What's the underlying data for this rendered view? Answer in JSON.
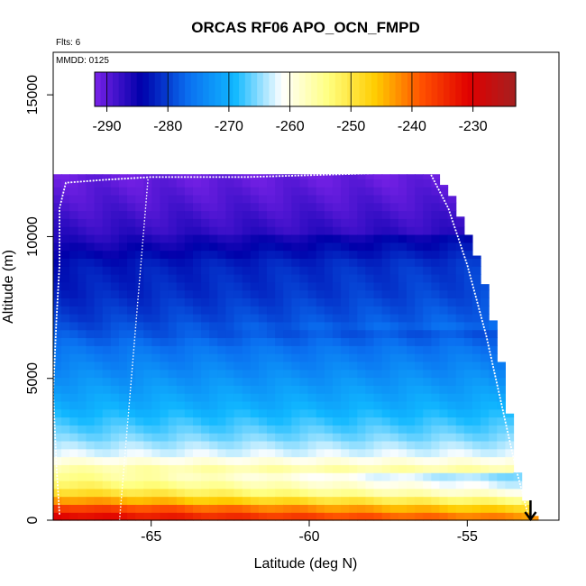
{
  "chart_data": {
    "type": "heatmap",
    "title": "ORCAS RF06 APO_OCN_FMPD",
    "annotations": [
      "Flts: 6",
      "MMDD: 0125"
    ],
    "xlabel": "Latitude (deg N)",
    "ylabel": "Altitude (m)",
    "xlim": [
      -68.1,
      -52.1
    ],
    "ylim": [
      0,
      16500
    ],
    "x_ticks": [
      -65,
      -60,
      -55
    ],
    "x_tick_labels": [
      "-65",
      "-60",
      "-55"
    ],
    "y_ticks": [
      0,
      5000,
      10000,
      15000
    ],
    "y_tick_labels": [
      "0",
      "5000",
      "10000",
      "15000"
    ],
    "colorbar": {
      "min": -292,
      "max": -223,
      "ticks": [
        -290,
        -280,
        -270,
        -260,
        -250,
        -240,
        -230
      ],
      "tick_labels": [
        "-290",
        "-280",
        "-270",
        "-260",
        "-250",
        "-240",
        "-230"
      ],
      "colors": [
        "#7a22e8",
        "#0000aa",
        "#0a6ff0",
        "#10b8ff",
        "#ffffff",
        "#ffff80",
        "#ffcc00",
        "#ff5000",
        "#e00000",
        "#a52020"
      ]
    },
    "field_profile": [
      {
        "alt": 0,
        "value": -229
      },
      {
        "alt": 300,
        "value": -233
      },
      {
        "alt": 600,
        "value": -240
      },
      {
        "alt": 900,
        "value": -247
      },
      {
        "alt": 1300,
        "value": -252
      },
      {
        "alt": 1800,
        "value": -256
      },
      {
        "alt": 2300,
        "value": -262
      },
      {
        "alt": 3000,
        "value": -266
      },
      {
        "alt": 4000,
        "value": -270
      },
      {
        "alt": 5000,
        "value": -273
      },
      {
        "alt": 6000,
        "value": -276
      },
      {
        "alt": 7000,
        "value": -280
      },
      {
        "alt": 8000,
        "value": -282
      },
      {
        "alt": 9000,
        "value": -283
      },
      {
        "alt": 10000,
        "value": -287
      },
      {
        "alt": 11000,
        "value": -289
      },
      {
        "alt": 12200,
        "value": -291
      }
    ],
    "data_top_boundary": [
      {
        "lat": -68.1,
        "alt": 12200
      },
      {
        "lat": -56.2,
        "alt": 12200
      },
      {
        "lat": -56.0,
        "alt": 12200
      },
      {
        "lat": -55.8,
        "alt": 11900
      },
      {
        "lat": -55.6,
        "alt": 11600
      },
      {
        "lat": -55.4,
        "alt": 11300
      },
      {
        "lat": -55.2,
        "alt": 10600
      },
      {
        "lat": -54.9,
        "alt": 9900
      },
      {
        "lat": -54.6,
        "alt": 9000
      },
      {
        "lat": -54.4,
        "alt": 8100
      },
      {
        "lat": -54.2,
        "alt": 7100
      },
      {
        "lat": -54.0,
        "alt": 6000
      },
      {
        "lat": -53.8,
        "alt": 4800
      },
      {
        "lat": -53.6,
        "alt": 3200
      },
      {
        "lat": -53.4,
        "alt": 1600
      },
      {
        "lat": -53.1,
        "alt": 500
      },
      {
        "lat": -52.8,
        "alt": 0
      }
    ],
    "flight_track": [
      {
        "lat": -67.9,
        "alt": 200
      },
      {
        "lat": -68.0,
        "alt": 2000
      },
      {
        "lat": -68.1,
        "alt": 4500
      },
      {
        "lat": -68.0,
        "alt": 7000
      },
      {
        "lat": -67.9,
        "alt": 9000
      },
      {
        "lat": -67.9,
        "alt": 11000
      },
      {
        "lat": -67.7,
        "alt": 11900
      },
      {
        "lat": -66.5,
        "alt": 12000
      },
      {
        "lat": -65.0,
        "alt": 12100
      },
      {
        "lat": -62.0,
        "alt": 12100
      },
      {
        "lat": -59.0,
        "alt": 12200
      },
      {
        "lat": -56.2,
        "alt": 12300
      },
      {
        "lat": -55.6,
        "alt": 11000
      },
      {
        "lat": -55.0,
        "alt": 9000
      },
      {
        "lat": -54.4,
        "alt": 6500
      },
      {
        "lat": -53.9,
        "alt": 4000
      },
      {
        "lat": -53.5,
        "alt": 2000
      },
      {
        "lat": -53.1,
        "alt": 300
      }
    ],
    "arrow_marker": {
      "lat": -53.0,
      "alt_top": 700,
      "alt_bottom": 0,
      "direction": "down"
    }
  }
}
